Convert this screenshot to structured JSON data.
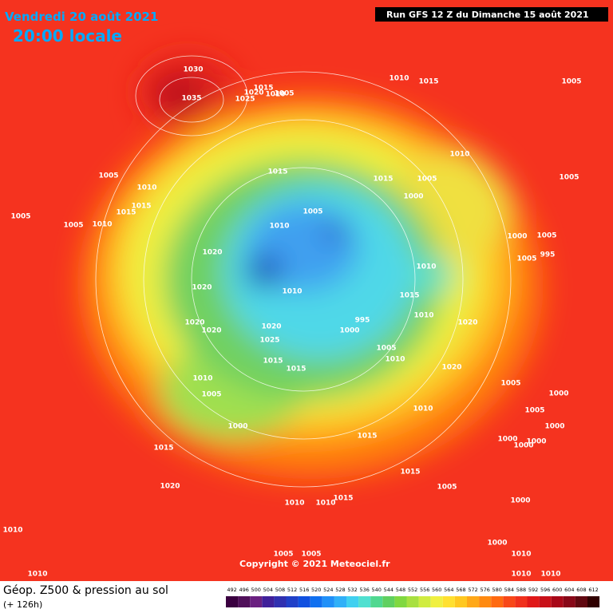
{
  "header": {
    "date": "Vendredi 20 août 2021",
    "time": "20:00 locale",
    "run": "Run GFS 12 Z du Dimanche 15 août 2021"
  },
  "copyright": "Copyright © 2021 Meteociel.fr",
  "legend": {
    "title": "Géop. Z500 & pression au sol",
    "lead": "(+ 126h)",
    "ticks": [
      492,
      496,
      500,
      504,
      508,
      512,
      516,
      520,
      524,
      528,
      532,
      536,
      540,
      544,
      548,
      552,
      556,
      560,
      564,
      568,
      572,
      576,
      580,
      584,
      588,
      592,
      596,
      600,
      604,
      608,
      612
    ]
  },
  "isobar_labels": [
    1030,
    1035,
    1015,
    1020,
    1025,
    1010,
    1005,
    1010,
    1015,
    1005,
    1010,
    1015,
    1005,
    1000,
    1005,
    1005,
    1010,
    1005,
    1005,
    1010,
    1015,
    1015,
    1010,
    1005,
    1015,
    1000,
    1005,
    995,
    1005,
    1010,
    1020,
    1020,
    1010,
    1015,
    1010,
    1020,
    995,
    1000,
    1020,
    1020,
    1020,
    1025,
    1015,
    1015,
    1005,
    1010,
    1020,
    1010,
    1005,
    1005,
    1000,
    1010,
    1005,
    1000,
    1000,
    1015,
    1000,
    1000,
    1000,
    1015,
    1015,
    1005,
    1020,
    1010,
    1015,
    1000,
    1010,
    1000,
    1010,
    1005,
    1005,
    1010,
    1010,
    1010,
    1010
  ]
}
